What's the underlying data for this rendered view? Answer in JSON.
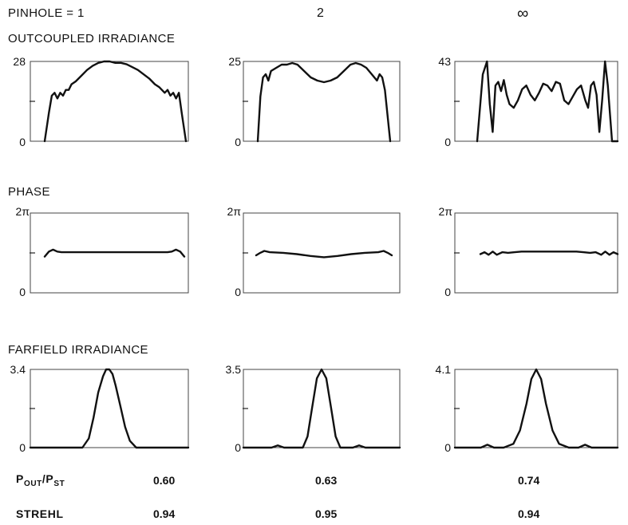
{
  "header": {
    "pinhole_label": "PINHOLE = 1",
    "col2_label": "2",
    "col3_label": "∞"
  },
  "rows": {
    "irradiance_title": "OUTCOUPLED IRRADIANCE",
    "phase_title": "PHASE",
    "farfield_title": "FARFIELD IRRADIANCE"
  },
  "axis_labels": {
    "zero": "0",
    "two_pi": "2π",
    "irr_max": [
      "28",
      "25",
      "43"
    ],
    "ff_max": [
      "3.4",
      "3.5",
      "4.1"
    ]
  },
  "stats": {
    "pout_label_main": "P",
    "pout_sub1": "OUT",
    "pout_slash": "/P",
    "pout_sub2": "ST",
    "strehl_label": "STREHL",
    "pout_values": [
      "0.60",
      "0.63",
      "0.74"
    ],
    "strehl_values": [
      "0.94",
      "0.95",
      "0.94"
    ]
  },
  "chart_data": [
    {
      "type": "line",
      "row": "outcoupled irradiance",
      "column": "1",
      "ylim": [
        0,
        28
      ],
      "x": [
        0.0,
        0.03,
        0.05,
        0.07,
        0.09,
        0.11,
        0.13,
        0.15,
        0.17,
        0.19,
        0.22,
        0.26,
        0.3,
        0.34,
        0.38,
        0.42,
        0.46,
        0.5,
        0.54,
        0.58,
        0.62,
        0.66,
        0.7,
        0.74,
        0.78,
        0.81,
        0.83,
        0.85,
        0.87,
        0.89,
        0.91,
        0.93,
        0.95,
        0.97,
        1.0
      ],
      "y": [
        0,
        10,
        16,
        17,
        15,
        17,
        16,
        18,
        18,
        20,
        21,
        23,
        25,
        26.5,
        27.5,
        28,
        28,
        27.5,
        27.5,
        27,
        26,
        25,
        23.5,
        22,
        20,
        19,
        18,
        17,
        18,
        16,
        17,
        15,
        17,
        10,
        0
      ]
    },
    {
      "type": "line",
      "row": "outcoupled irradiance",
      "column": "2",
      "ylim": [
        0,
        25
      ],
      "x": [
        0.0,
        0.02,
        0.04,
        0.06,
        0.08,
        0.1,
        0.14,
        0.18,
        0.22,
        0.26,
        0.3,
        0.35,
        0.4,
        0.45,
        0.5,
        0.55,
        0.6,
        0.65,
        0.7,
        0.74,
        0.78,
        0.82,
        0.86,
        0.9,
        0.92,
        0.94,
        0.96,
        0.98,
        1.0
      ],
      "y": [
        0,
        14,
        20,
        21,
        19,
        22,
        23,
        24,
        24,
        24.5,
        24,
        22,
        20,
        19,
        18.5,
        19,
        20,
        22,
        24,
        24.5,
        24,
        23,
        21,
        19,
        21,
        20,
        16,
        8,
        0
      ]
    },
    {
      "type": "line",
      "row": "outcoupled irradiance",
      "column": "3",
      "ylim": [
        0,
        43
      ],
      "x": [
        0.0,
        0.04,
        0.07,
        0.09,
        0.11,
        0.13,
        0.15,
        0.17,
        0.19,
        0.21,
        0.23,
        0.26,
        0.29,
        0.32,
        0.35,
        0.38,
        0.41,
        0.44,
        0.47,
        0.5,
        0.53,
        0.56,
        0.59,
        0.62,
        0.65,
        0.68,
        0.71,
        0.74,
        0.77,
        0.79,
        0.81,
        0.83,
        0.85,
        0.87,
        0.89,
        0.91,
        0.93,
        0.96,
        1.0
      ],
      "y": [
        0,
        36,
        43,
        20,
        5,
        30,
        32,
        27,
        33,
        25,
        20,
        18,
        22,
        28,
        30,
        25,
        22,
        26,
        31,
        30,
        27,
        32,
        31,
        22,
        20,
        24,
        28,
        30,
        22,
        18,
        30,
        32,
        25,
        5,
        22,
        43,
        30,
        0,
        0
      ]
    },
    {
      "type": "line",
      "row": "phase",
      "column": "1",
      "ylim": [
        0,
        6.283
      ],
      "x": [
        0.0,
        0.03,
        0.06,
        0.09,
        0.12,
        0.2,
        0.3,
        0.4,
        0.5,
        0.6,
        0.7,
        0.8,
        0.88,
        0.91,
        0.94,
        0.97,
        1.0
      ],
      "y": [
        2.85,
        3.25,
        3.4,
        3.25,
        3.2,
        3.2,
        3.2,
        3.2,
        3.2,
        3.2,
        3.2,
        3.2,
        3.2,
        3.25,
        3.4,
        3.25,
        2.85
      ]
    },
    {
      "type": "line",
      "row": "phase",
      "column": "2",
      "ylim": [
        0,
        6.283
      ],
      "x": [
        0.0,
        0.03,
        0.06,
        0.1,
        0.2,
        0.3,
        0.4,
        0.5,
        0.6,
        0.7,
        0.8,
        0.9,
        0.94,
        0.97,
        1.0
      ],
      "y": [
        2.95,
        3.15,
        3.3,
        3.2,
        3.15,
        3.05,
        2.9,
        2.8,
        2.9,
        3.05,
        3.15,
        3.2,
        3.3,
        3.15,
        2.95
      ]
    },
    {
      "type": "line",
      "row": "phase",
      "column": "3",
      "ylim": [
        0,
        6.283
      ],
      "x": [
        0.0,
        0.03,
        0.06,
        0.09,
        0.12,
        0.16,
        0.2,
        0.25,
        0.3,
        0.4,
        0.5,
        0.6,
        0.7,
        0.75,
        0.8,
        0.84,
        0.88,
        0.91,
        0.94,
        0.97,
        1.0
      ],
      "y": [
        3.05,
        3.2,
        3.0,
        3.25,
        3.0,
        3.2,
        3.15,
        3.2,
        3.25,
        3.25,
        3.25,
        3.25,
        3.25,
        3.2,
        3.15,
        3.2,
        3.0,
        3.25,
        3.0,
        3.2,
        3.05
      ]
    },
    {
      "type": "line",
      "row": "farfield irradiance",
      "column": "1",
      "ylim": [
        0,
        3.4
      ],
      "x": [
        0.0,
        0.33,
        0.37,
        0.4,
        0.43,
        0.46,
        0.48,
        0.5,
        0.52,
        0.54,
        0.57,
        0.6,
        0.63,
        0.67,
        1.0
      ],
      "y": [
        0,
        0,
        0.4,
        1.3,
        2.4,
        3.1,
        3.4,
        3.4,
        3.2,
        2.7,
        1.8,
        0.9,
        0.3,
        0,
        0
      ]
    },
    {
      "type": "line",
      "row": "farfield irradiance",
      "column": "2",
      "ylim": [
        0,
        3.5
      ],
      "x": [
        0.0,
        0.18,
        0.22,
        0.26,
        0.3,
        0.38,
        0.41,
        0.44,
        0.47,
        0.5,
        0.53,
        0.56,
        0.59,
        0.62,
        0.7,
        0.74,
        0.78,
        0.82,
        1.0
      ],
      "y": [
        0,
        0,
        0.1,
        0,
        0,
        0,
        0.5,
        1.8,
        3.1,
        3.5,
        3.1,
        1.8,
        0.5,
        0,
        0,
        0.1,
        0,
        0,
        0
      ]
    },
    {
      "type": "line",
      "row": "farfield irradiance",
      "column": "3",
      "ylim": [
        0,
        4.1
      ],
      "x": [
        0.0,
        0.16,
        0.2,
        0.24,
        0.3,
        0.36,
        0.4,
        0.44,
        0.47,
        0.5,
        0.53,
        0.56,
        0.6,
        0.64,
        0.7,
        0.76,
        0.8,
        0.84,
        1.0
      ],
      "y": [
        0,
        0,
        0.15,
        0,
        0,
        0.2,
        0.9,
        2.3,
        3.6,
        4.1,
        3.6,
        2.3,
        0.9,
        0.2,
        0,
        0,
        0.15,
        0,
        0
      ]
    }
  ]
}
